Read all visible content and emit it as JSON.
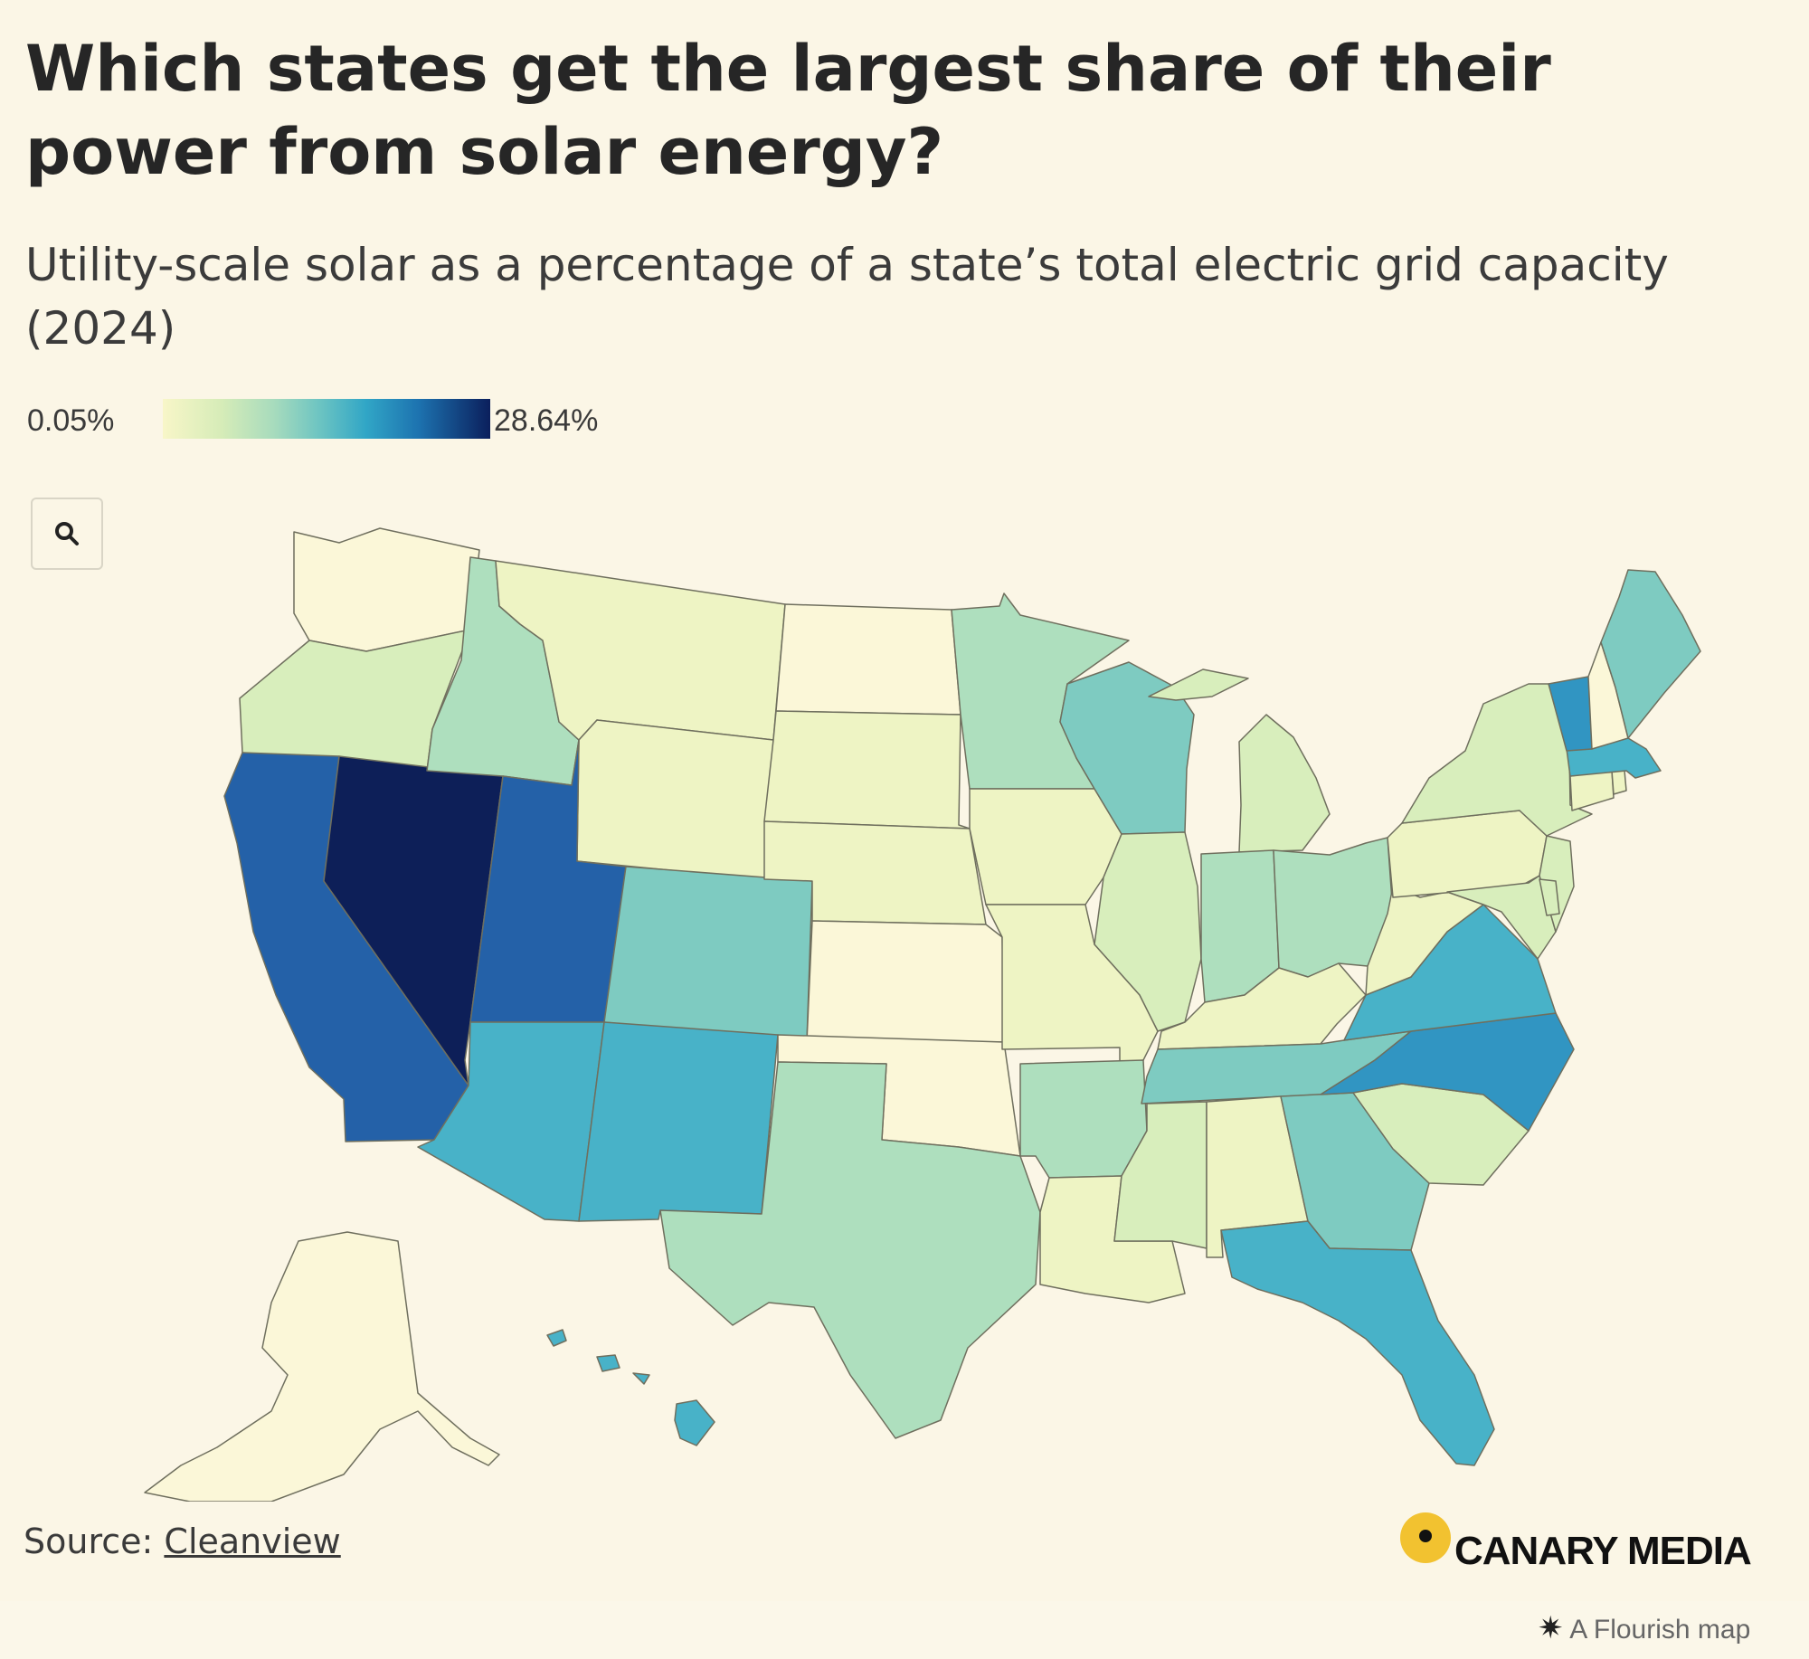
{
  "header": {
    "title": "Which states get the largest share of their power from solar energy?",
    "subtitle": "Utility-scale solar as a percentage of a state’s total electric grid capacity (2024)"
  },
  "legend": {
    "min_label": "0.05%",
    "max_label": "28.64%",
    "min_value": 0.05,
    "max_value": 28.64,
    "colors": [
      "#f8f6c8",
      "#d6ecb8",
      "#a7dbbd",
      "#6cc4c2",
      "#31a6c6",
      "#1d73b0",
      "#0b1f5c"
    ]
  },
  "controls": {
    "zoom_icon": "search-icon"
  },
  "map_data": {
    "type": "choropleth",
    "region": "United States",
    "metric": "Utility-scale solar share of total electric grid capacity (%)",
    "classes": {
      "darkest": "#0d1f58",
      "dark": "#2461a8",
      "mid_dark": "#3195c2",
      "mid": "#48b2c8",
      "mid_light": "#7ecbc1",
      "light_mid": "#aedfbe",
      "light": "#d8eebc",
      "lighter": "#eef4c4",
      "lightest": "#fbf7d8"
    },
    "states": [
      {
        "state": "Nevada",
        "class": "darkest"
      },
      {
        "state": "California",
        "class": "dark"
      },
      {
        "state": "Utah",
        "class": "dark"
      },
      {
        "state": "North Carolina",
        "class": "mid_dark"
      },
      {
        "state": "Vermont",
        "class": "mid_dark"
      },
      {
        "state": "New Mexico",
        "class": "mid"
      },
      {
        "state": "Florida",
        "class": "mid"
      },
      {
        "state": "Arizona",
        "class": "mid"
      },
      {
        "state": "Virginia",
        "class": "mid"
      },
      {
        "state": "Hawaii",
        "class": "mid"
      },
      {
        "state": "Massachusetts",
        "class": "mid"
      },
      {
        "state": "Tennessee",
        "class": "mid_light"
      },
      {
        "state": "Georgia",
        "class": "mid_light"
      },
      {
        "state": "Colorado",
        "class": "mid_light"
      },
      {
        "state": "Wisconsin",
        "class": "mid_light"
      },
      {
        "state": "Maine",
        "class": "mid_light"
      },
      {
        "state": "Texas",
        "class": "light_mid"
      },
      {
        "state": "Idaho",
        "class": "light_mid"
      },
      {
        "state": "Minnesota",
        "class": "light_mid"
      },
      {
        "state": "Indiana",
        "class": "light_mid"
      },
      {
        "state": "Ohio",
        "class": "light_mid"
      },
      {
        "state": "Arkansas",
        "class": "light_mid"
      },
      {
        "state": "Mississippi",
        "class": "light"
      },
      {
        "state": "Oregon",
        "class": "light"
      },
      {
        "state": "Michigan",
        "class": "light"
      },
      {
        "state": "South Carolina",
        "class": "light"
      },
      {
        "state": "Illinois",
        "class": "light"
      },
      {
        "state": "New York",
        "class": "light"
      },
      {
        "state": "Maryland",
        "class": "light"
      },
      {
        "state": "New Jersey",
        "class": "light"
      },
      {
        "state": "Delaware",
        "class": "light"
      },
      {
        "state": "Louisiana",
        "class": "lighter"
      },
      {
        "state": "Alabama",
        "class": "lighter"
      },
      {
        "state": "Montana",
        "class": "lighter"
      },
      {
        "state": "Wyoming",
        "class": "lighter"
      },
      {
        "state": "South Dakota",
        "class": "lighter"
      },
      {
        "state": "Iowa",
        "class": "lighter"
      },
      {
        "state": "Nebraska",
        "class": "lighter"
      },
      {
        "state": "Missouri",
        "class": "lighter"
      },
      {
        "state": "Kentucky",
        "class": "lighter"
      },
      {
        "state": "West Virginia",
        "class": "lighter"
      },
      {
        "state": "Pennsylvania",
        "class": "lighter"
      },
      {
        "state": "Connecticut",
        "class": "lighter"
      },
      {
        "state": "Rhode Island",
        "class": "lighter"
      },
      {
        "state": "Washington",
        "class": "lightest"
      },
      {
        "state": "North Dakota",
        "class": "lightest"
      },
      {
        "state": "Kansas",
        "class": "lightest"
      },
      {
        "state": "Oklahoma",
        "class": "lightest"
      },
      {
        "state": "New Hampshire",
        "class": "lightest"
      },
      {
        "state": "Alaska",
        "class": "lightest"
      }
    ]
  },
  "footer": {
    "source_prefix": "Source: ",
    "source_link": "Cleanview",
    "brand": "CANARY MEDIA",
    "flourish": "A Flourish map"
  }
}
